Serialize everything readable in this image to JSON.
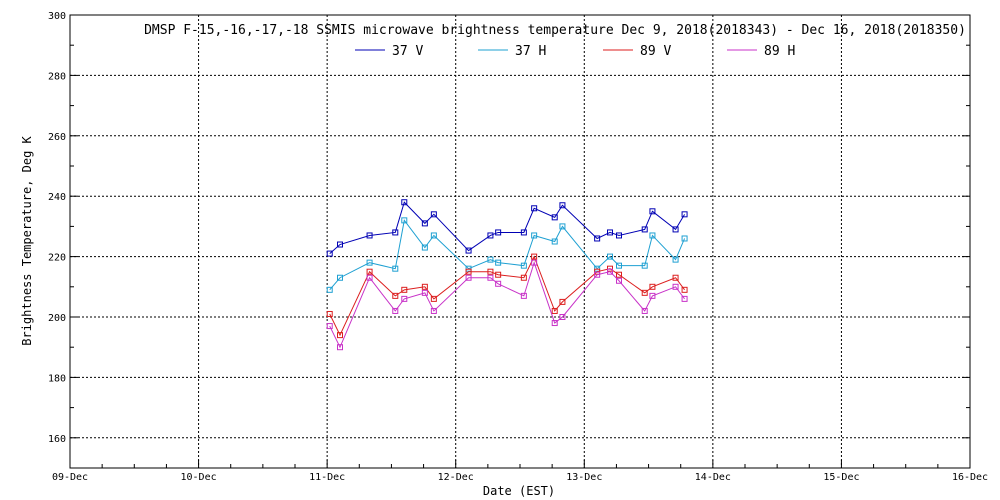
{
  "chart_data": {
    "type": "line",
    "title": "DMSP F-15,-16,-17,-18 SSMIS microwave brightness temperature Dec  9, 2018(2018343) - Dec 16, 2018(2018350)",
    "xlabel": "Date (EST)",
    "ylabel": "Brightness Temperature, Deg K",
    "ylim": [
      150,
      300
    ],
    "yticks": [
      160,
      180,
      200,
      220,
      240,
      260,
      280,
      300
    ],
    "xlim": [
      0,
      7
    ],
    "xticks": [
      {
        "x": 0,
        "label": "09-Dec"
      },
      {
        "x": 1,
        "label": "10-Dec"
      },
      {
        "x": 2,
        "label": "11-Dec"
      },
      {
        "x": 3,
        "label": "12-Dec"
      },
      {
        "x": 4,
        "label": "13-Dec"
      },
      {
        "x": 5,
        "label": "14-Dec"
      },
      {
        "x": 6,
        "label": "15-Dec"
      },
      {
        "x": 7,
        "label": "16-Dec"
      }
    ],
    "grid": true,
    "legend_position": "top-center",
    "series": [
      {
        "name": "37 V",
        "color": "#0000b4",
        "x": [
          2.02,
          2.1,
          2.33,
          2.53,
          2.6,
          2.76,
          2.83,
          3.1,
          3.27,
          3.33,
          3.53,
          3.61,
          3.77,
          3.83,
          4.1,
          4.2,
          4.27,
          4.47,
          4.53,
          4.71,
          4.78
        ],
        "y": [
          221,
          224,
          227,
          228,
          238,
          231,
          234,
          222,
          227,
          228,
          228,
          236,
          233,
          237,
          226,
          228,
          227,
          229,
          235,
          229,
          234
        ]
      },
      {
        "name": "37 H",
        "color": "#1ea0d2",
        "x": [
          2.02,
          2.1,
          2.33,
          2.53,
          2.6,
          2.76,
          2.83,
          3.1,
          3.27,
          3.33,
          3.53,
          3.61,
          3.77,
          3.83,
          4.1,
          4.2,
          4.27,
          4.47,
          4.53,
          4.71,
          4.78
        ],
        "y": [
          209,
          213,
          218,
          216,
          232,
          223,
          227,
          216,
          219,
          218,
          217,
          227,
          225,
          230,
          216,
          220,
          217,
          217,
          227,
          219,
          226
        ]
      },
      {
        "name": "89 V",
        "color": "#dc1e1e",
        "x": [
          2.02,
          2.1,
          2.33,
          2.53,
          2.6,
          2.76,
          2.83,
          3.1,
          3.27,
          3.33,
          3.53,
          3.61,
          3.77,
          3.83,
          4.1,
          4.2,
          4.27,
          4.47,
          4.53,
          4.71,
          4.78
        ],
        "y": [
          201,
          194,
          215,
          207,
          209,
          210,
          206,
          215,
          215,
          214,
          213,
          220,
          202,
          205,
          215,
          216,
          214,
          208,
          210,
          213,
          209
        ]
      },
      {
        "name": "89 H",
        "color": "#c832c8",
        "x": [
          2.02,
          2.1,
          2.33,
          2.53,
          2.6,
          2.76,
          2.83,
          3.1,
          3.27,
          3.33,
          3.53,
          3.61,
          3.77,
          3.83,
          4.1,
          4.2,
          4.27,
          4.47,
          4.53,
          4.71,
          4.78
        ],
        "y": [
          197,
          190,
          213,
          202,
          206,
          208,
          202,
          213,
          213,
          211,
          207,
          218,
          198,
          200,
          214,
          215,
          212,
          202,
          207,
          210,
          206
        ]
      }
    ]
  }
}
